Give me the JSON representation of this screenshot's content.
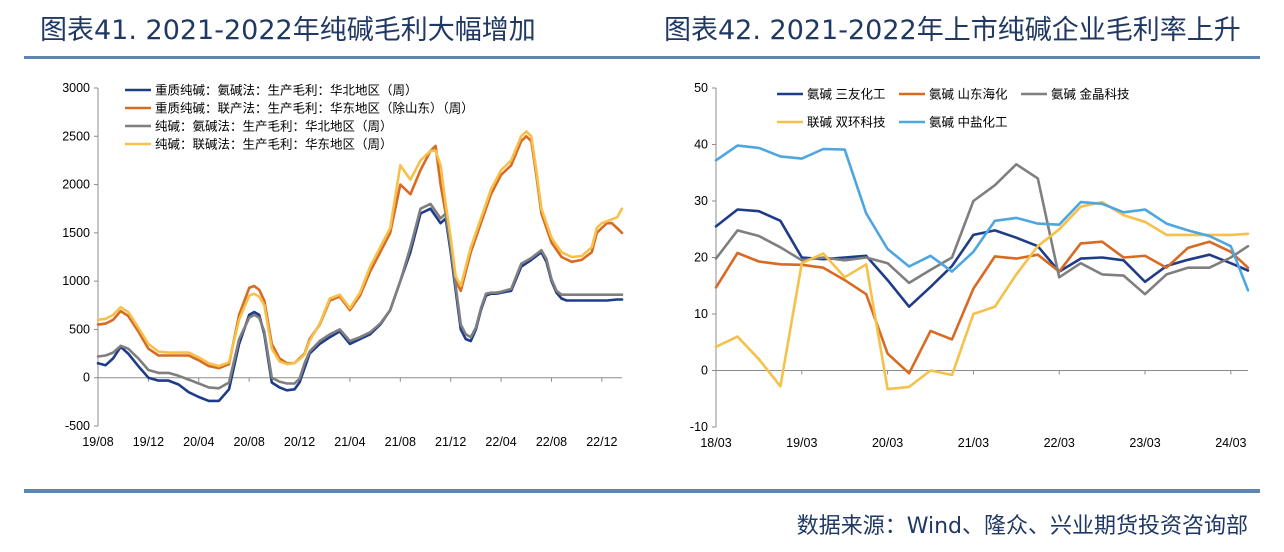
{
  "titles": {
    "left": "图表41. 2021-2022年纯碱毛利大幅增加",
    "right": "图表42. 2021-2022年上市纯碱企业毛利率上升"
  },
  "source": "数据来源：Wind、隆众、兴业期货投资咨询部",
  "chart_data": [
    {
      "type": "line",
      "title": "",
      "xlabel": "",
      "ylabel": "",
      "ylim": [
        -500,
        3000
      ],
      "yticks": [
        -500,
        0,
        500,
        1000,
        1500,
        2000,
        2500,
        3000
      ],
      "x_ticks": [
        "19/08",
        "19/12",
        "20/04",
        "20/08",
        "20/12",
        "21/04",
        "21/08",
        "21/12",
        "22/04",
        "22/08",
        "22/12"
      ],
      "x_range": [
        0,
        10.4
      ],
      "grid": false,
      "legend": "top-left",
      "series": [
        {
          "name": "重质纯碱：氨碱法：生产毛利：华北地区（周）",
          "color": "#1f3c88",
          "x": [
            0,
            0.15,
            0.3,
            0.45,
            0.6,
            0.8,
            1.0,
            1.2,
            1.4,
            1.6,
            1.8,
            2.0,
            2.2,
            2.4,
            2.6,
            2.8,
            3.0,
            3.1,
            3.2,
            3.3,
            3.45,
            3.6,
            3.75,
            3.9,
            4.0,
            4.1,
            4.2,
            4.4,
            4.6,
            4.8,
            5.0,
            5.2,
            5.4,
            5.6,
            5.8,
            6.0,
            6.2,
            6.4,
            6.6,
            6.8,
            6.9,
            7.0,
            7.1,
            7.2,
            7.3,
            7.4,
            7.5,
            7.6,
            7.7,
            7.8,
            7.9,
            8.0,
            8.2,
            8.4,
            8.6,
            8.8,
            8.9,
            9.0,
            9.1,
            9.2,
            9.3,
            9.5,
            9.7,
            9.9,
            10.1,
            10.3,
            10.4
          ],
          "y": [
            150,
            130,
            200,
            320,
            250,
            120,
            0,
            -30,
            -30,
            -70,
            -150,
            -200,
            -240,
            -240,
            -120,
            350,
            650,
            680,
            650,
            450,
            -50,
            -100,
            -130,
            -120,
            -50,
            100,
            250,
            350,
            420,
            480,
            350,
            400,
            450,
            550,
            700,
            1000,
            1300,
            1700,
            1750,
            1600,
            1650,
            1300,
            900,
            500,
            400,
            380,
            500,
            700,
            850,
            870,
            870,
            880,
            900,
            1150,
            1220,
            1300,
            1200,
            1000,
            880,
            820,
            800,
            800,
            800,
            800,
            800,
            810,
            810
          ]
        },
        {
          "name": "重质纯碱：联产法：生产毛利：华东地区（除山东）（周）",
          "color": "#d86a23",
          "x": [
            0,
            0.15,
            0.3,
            0.45,
            0.6,
            0.8,
            1.0,
            1.2,
            1.4,
            1.6,
            1.8,
            2.0,
            2.2,
            2.4,
            2.6,
            2.8,
            3.0,
            3.1,
            3.2,
            3.3,
            3.45,
            3.6,
            3.75,
            3.9,
            4.0,
            4.1,
            4.2,
            4.4,
            4.6,
            4.8,
            5.0,
            5.2,
            5.4,
            5.6,
            5.8,
            6.0,
            6.2,
            6.4,
            6.6,
            6.7,
            6.8,
            6.9,
            7.0,
            7.1,
            7.2,
            7.4,
            7.6,
            7.8,
            8.0,
            8.2,
            8.4,
            8.5,
            8.6,
            8.7,
            8.8,
            9.0,
            9.2,
            9.4,
            9.6,
            9.8,
            9.9,
            10.0,
            10.1,
            10.2,
            10.3,
            10.4
          ],
          "y": [
            550,
            560,
            600,
            690,
            640,
            480,
            300,
            230,
            230,
            230,
            230,
            180,
            120,
            100,
            140,
            650,
            930,
            950,
            910,
            800,
            350,
            200,
            150,
            150,
            200,
            250,
            400,
            550,
            800,
            840,
            700,
            850,
            1100,
            1300,
            1500,
            2000,
            1900,
            2150,
            2350,
            2400,
            2000,
            1700,
            1400,
            1000,
            900,
            1300,
            1600,
            1900,
            2100,
            2200,
            2450,
            2500,
            2450,
            2100,
            1700,
            1400,
            1250,
            1200,
            1220,
            1300,
            1500,
            1550,
            1600,
            1600,
            1550,
            1500
          ]
        },
        {
          "name": "纯碱：氨碱法：生产毛利：华北地区（周）",
          "color": "#7f7f7f",
          "x": [
            0,
            0.15,
            0.3,
            0.45,
            0.6,
            0.8,
            1.0,
            1.2,
            1.4,
            1.6,
            1.8,
            2.0,
            2.2,
            2.4,
            2.6,
            2.8,
            3.0,
            3.1,
            3.2,
            3.3,
            3.45,
            3.6,
            3.75,
            3.9,
            4.0,
            4.1,
            4.2,
            4.4,
            4.6,
            4.8,
            5.0,
            5.2,
            5.4,
            5.6,
            5.8,
            6.0,
            6.2,
            6.4,
            6.6,
            6.8,
            6.9,
            7.0,
            7.1,
            7.2,
            7.3,
            7.4,
            7.5,
            7.6,
            7.7,
            7.8,
            7.9,
            8.0,
            8.2,
            8.4,
            8.6,
            8.8,
            8.9,
            9.0,
            9.1,
            9.2,
            9.3,
            9.5,
            9.7,
            9.9,
            10.1,
            10.3,
            10.4
          ],
          "y": [
            220,
            230,
            260,
            330,
            300,
            200,
            80,
            50,
            50,
            20,
            -20,
            -60,
            -100,
            -110,
            -50,
            400,
            620,
            650,
            620,
            480,
            0,
            -40,
            -60,
            -60,
            -10,
            150,
            270,
            380,
            450,
            500,
            380,
            420,
            470,
            560,
            700,
            1000,
            1350,
            1750,
            1800,
            1650,
            1700,
            1350,
            950,
            550,
            450,
            420,
            520,
            720,
            870,
            880,
            880,
            890,
            920,
            1180,
            1240,
            1320,
            1230,
            1020,
            900,
            860,
            860,
            860,
            860,
            860,
            860,
            860,
            860
          ]
        },
        {
          "name": "纯碱：联碱法：生产毛利：华东地区（周）",
          "color": "#f6c14b",
          "x": [
            0,
            0.15,
            0.3,
            0.45,
            0.6,
            0.8,
            1.0,
            1.2,
            1.4,
            1.6,
            1.8,
            2.0,
            2.2,
            2.4,
            2.6,
            2.8,
            3.0,
            3.1,
            3.2,
            3.3,
            3.45,
            3.6,
            3.75,
            3.9,
            4.0,
            4.1,
            4.2,
            4.4,
            4.6,
            4.8,
            5.0,
            5.2,
            5.4,
            5.6,
            5.8,
            6.0,
            6.2,
            6.4,
            6.6,
            6.7,
            6.8,
            6.9,
            7.0,
            7.1,
            7.2,
            7.4,
            7.6,
            7.8,
            8.0,
            8.2,
            8.4,
            8.5,
            8.6,
            8.7,
            8.8,
            9.0,
            9.2,
            9.4,
            9.6,
            9.8,
            9.9,
            10.0,
            10.1,
            10.2,
            10.3,
            10.4
          ],
          "y": [
            600,
            610,
            650,
            730,
            680,
            520,
            350,
            270,
            260,
            260,
            260,
            210,
            150,
            120,
            160,
            600,
            850,
            870,
            840,
            750,
            300,
            170,
            140,
            150,
            190,
            240,
            380,
            560,
            820,
            860,
            720,
            880,
            1150,
            1350,
            1550,
            2200,
            2050,
            2250,
            2350,
            2350,
            2200,
            1800,
            1450,
            1050,
            950,
            1350,
            1650,
            1950,
            2150,
            2250,
            2500,
            2550,
            2500,
            2150,
            1750,
            1450,
            1300,
            1250,
            1260,
            1350,
            1550,
            1600,
            1620,
            1640,
            1660,
            1750
          ]
        }
      ]
    },
    {
      "type": "line",
      "title": "",
      "xlabel": "",
      "ylabel": "",
      "ylim": [
        -10,
        50
      ],
      "yticks": [
        -10,
        0,
        10,
        20,
        30,
        40,
        50
      ],
      "x_ticks": [
        "18/03",
        "19/03",
        "20/03",
        "21/03",
        "22/03",
        "23/03",
        "24/03"
      ],
      "x_range": [
        0,
        6.2
      ],
      "grid": false,
      "legend": "top",
      "series": [
        {
          "name": "氨碱 三友化工",
          "color": "#1f3c88",
          "x": [
            0,
            0.25,
            0.5,
            0.75,
            1.0,
            1.25,
            1.5,
            1.75,
            2.0,
            2.25,
            2.5,
            2.75,
            3.0,
            3.25,
            3.5,
            3.75,
            4.0,
            4.25,
            4.5,
            4.75,
            5.0,
            5.25,
            5.5,
            5.75,
            6.0,
            6.2
          ],
          "y": [
            25.5,
            28.5,
            28.2,
            26.5,
            20.0,
            19.7,
            20.0,
            20.3,
            16.0,
            11.3,
            14.8,
            18.5,
            24.0,
            24.8,
            23.5,
            22.0,
            17.5,
            19.8,
            20.0,
            19.5,
            15.7,
            18.5,
            19.6,
            20.5,
            19.0,
            17.7
          ]
        },
        {
          "name": "氨碱 山东海化",
          "color": "#d86a23",
          "x": [
            0,
            0.25,
            0.5,
            0.75,
            1.0,
            1.25,
            1.5,
            1.75,
            2.0,
            2.25,
            2.5,
            2.75,
            3.0,
            3.25,
            3.5,
            3.75,
            4.0,
            4.25,
            4.5,
            4.75,
            5.0,
            5.25,
            5.5,
            5.75,
            6.0,
            6.2
          ],
          "y": [
            14.7,
            20.8,
            19.3,
            18.8,
            18.7,
            18.2,
            16.0,
            13.5,
            3.0,
            -0.5,
            7.0,
            5.5,
            14.5,
            20.2,
            19.8,
            20.5,
            17.5,
            22.5,
            22.8,
            20.0,
            20.3,
            18.2,
            21.7,
            22.8,
            21.0,
            18.2
          ]
        },
        {
          "name": "氨碱 金晶科技",
          "color": "#7f7f7f",
          "x": [
            0,
            0.25,
            0.5,
            0.75,
            1.0,
            1.25,
            1.5,
            1.75,
            2.0,
            2.25,
            2.5,
            2.75,
            3.0,
            3.25,
            3.5,
            3.75,
            4.0,
            4.25,
            4.5,
            4.75,
            5.0,
            5.25,
            5.5,
            5.75,
            6.0,
            6.2
          ],
          "y": [
            19.8,
            24.8,
            23.8,
            21.8,
            19.5,
            20.0,
            19.5,
            20.0,
            19.0,
            15.5,
            17.8,
            20.0,
            30.0,
            32.8,
            36.5,
            34.0,
            16.5,
            19.0,
            17.0,
            16.8,
            13.5,
            17.0,
            18.2,
            18.2,
            20.0,
            22.0
          ]
        },
        {
          "name": "联碱 双环科技",
          "color": "#f6c14b",
          "x": [
            0,
            0.25,
            0.5,
            0.75,
            1.0,
            1.25,
            1.5,
            1.75,
            2.0,
            2.25,
            2.5,
            2.75,
            3.0,
            3.25,
            3.5,
            3.75,
            4.0,
            4.25,
            4.5,
            4.75,
            5.0,
            5.25,
            5.5,
            5.75,
            6.0,
            6.2
          ],
          "y": [
            4.2,
            6.0,
            2.0,
            -2.8,
            19.0,
            20.7,
            16.5,
            18.8,
            -3.3,
            -2.9,
            0.0,
            -0.8,
            10.0,
            11.3,
            17.0,
            22.0,
            25.0,
            29.0,
            29.8,
            27.5,
            26.3,
            24.0,
            24.0,
            24.0,
            24.0,
            24.2
          ]
        },
        {
          "name": "氨碱 中盐化工",
          "color": "#4ea6e0",
          "x": [
            0,
            0.25,
            0.5,
            0.75,
            1.0,
            1.25,
            1.5,
            1.75,
            2.0,
            2.25,
            2.5,
            2.75,
            3.0,
            3.25,
            3.5,
            3.75,
            4.0,
            4.25,
            4.5,
            4.75,
            5.0,
            5.25,
            5.5,
            5.75,
            6.0,
            6.2
          ],
          "y": [
            37.2,
            39.8,
            39.4,
            37.9,
            37.5,
            39.2,
            39.1,
            27.8,
            21.5,
            18.4,
            20.3,
            17.5,
            21.0,
            26.5,
            27.0,
            26.0,
            25.8,
            29.8,
            29.5,
            28.0,
            28.5,
            26.0,
            24.8,
            23.8,
            22.0,
            14.2
          ]
        }
      ]
    }
  ]
}
